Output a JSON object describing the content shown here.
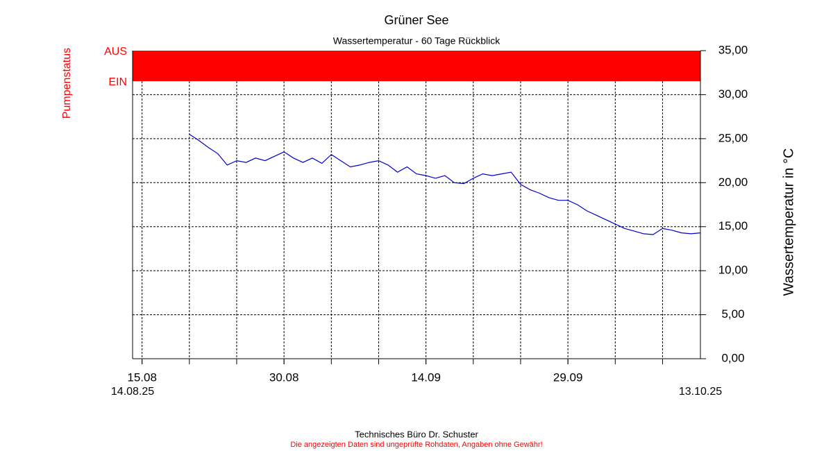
{
  "chart_data": {
    "type": "line",
    "title": "Grüner See",
    "subtitle": "Wassertemperatur - 60 Tage Rückblick",
    "y_label": "Wassertemperatur in °C",
    "pump_status": {
      "label": "Pumpenstatus",
      "levels": [
        "AUS",
        "EIN"
      ],
      "color": "#ff0000"
    },
    "xlim": [
      "2025-08-14",
      "2025-10-13"
    ],
    "x_range_labels": [
      "14.08.25",
      "13.10.25"
    ],
    "xticks": [
      {
        "value": "2025-08-15",
        "label": "15.08"
      },
      {
        "value": "2025-08-30",
        "label": "30.08"
      },
      {
        "value": "2025-09-14",
        "label": "14.09"
      },
      {
        "value": "2025-09-29",
        "label": "29.09"
      }
    ],
    "xgrid": [
      "2025-08-15",
      "2025-08-20",
      "2025-08-25",
      "2025-08-30",
      "2025-09-04",
      "2025-09-09",
      "2025-09-14",
      "2025-09-19",
      "2025-09-24",
      "2025-09-29",
      "2025-10-04",
      "2025-10-09"
    ],
    "ylim": [
      0,
      35
    ],
    "yticks": [
      {
        "value": 0,
        "label": "0,00"
      },
      {
        "value": 5,
        "label": "5,00"
      },
      {
        "value": 10,
        "label": "10,00"
      },
      {
        "value": 15,
        "label": "15,00"
      },
      {
        "value": 20,
        "label": "20,00"
      },
      {
        "value": 25,
        "label": "25,00"
      },
      {
        "value": 30,
        "label": "30,00"
      },
      {
        "value": 35,
        "label": "35,00"
      }
    ],
    "grid": true,
    "series": [
      {
        "color": "#0000c8",
        "x": [
          "2025-08-20",
          "2025-08-21",
          "2025-08-22",
          "2025-08-23",
          "2025-08-24",
          "2025-08-25",
          "2025-08-26",
          "2025-08-27",
          "2025-08-28",
          "2025-08-29",
          "2025-08-30",
          "2025-08-31",
          "2025-09-01",
          "2025-09-02",
          "2025-09-03",
          "2025-09-04",
          "2025-09-05",
          "2025-09-06",
          "2025-09-07",
          "2025-09-08",
          "2025-09-09",
          "2025-09-10",
          "2025-09-11",
          "2025-09-12",
          "2025-09-13",
          "2025-09-14",
          "2025-09-15",
          "2025-09-16",
          "2025-09-17",
          "2025-09-18",
          "2025-09-19",
          "2025-09-20",
          "2025-09-21",
          "2025-09-22",
          "2025-09-23",
          "2025-09-24",
          "2025-09-25",
          "2025-09-26",
          "2025-09-27",
          "2025-09-28",
          "2025-09-29",
          "2025-09-30",
          "2025-10-01",
          "2025-10-02",
          "2025-10-03",
          "2025-10-04",
          "2025-10-05",
          "2025-10-06",
          "2025-10-07",
          "2025-10-08",
          "2025-10-09",
          "2025-10-10",
          "2025-10-11",
          "2025-10-12",
          "2025-10-13"
        ],
        "values": [
          25.5,
          24.8,
          24.0,
          23.3,
          22.0,
          22.5,
          22.3,
          22.8,
          22.5,
          23.0,
          23.5,
          22.8,
          22.3,
          22.8,
          22.2,
          23.2,
          22.5,
          21.8,
          22.0,
          22.3,
          22.5,
          22.0,
          21.2,
          21.8,
          21.0,
          20.8,
          20.5,
          20.8,
          20.0,
          19.9,
          20.5,
          21.0,
          20.8,
          21.0,
          21.2,
          19.8,
          19.2,
          18.8,
          18.3,
          18.0,
          18.0,
          17.5,
          16.8,
          16.3,
          15.8,
          15.3,
          14.8,
          14.5,
          14.2,
          14.1,
          14.8,
          14.6,
          14.3,
          14.2,
          14.3
        ]
      }
    ],
    "footer": "Technisches Büro Dr. Schuster",
    "disclaimer": "Die angezeigten Daten sind ungeprüfte Rohdaten, Angaben ohne Gewähr!"
  }
}
